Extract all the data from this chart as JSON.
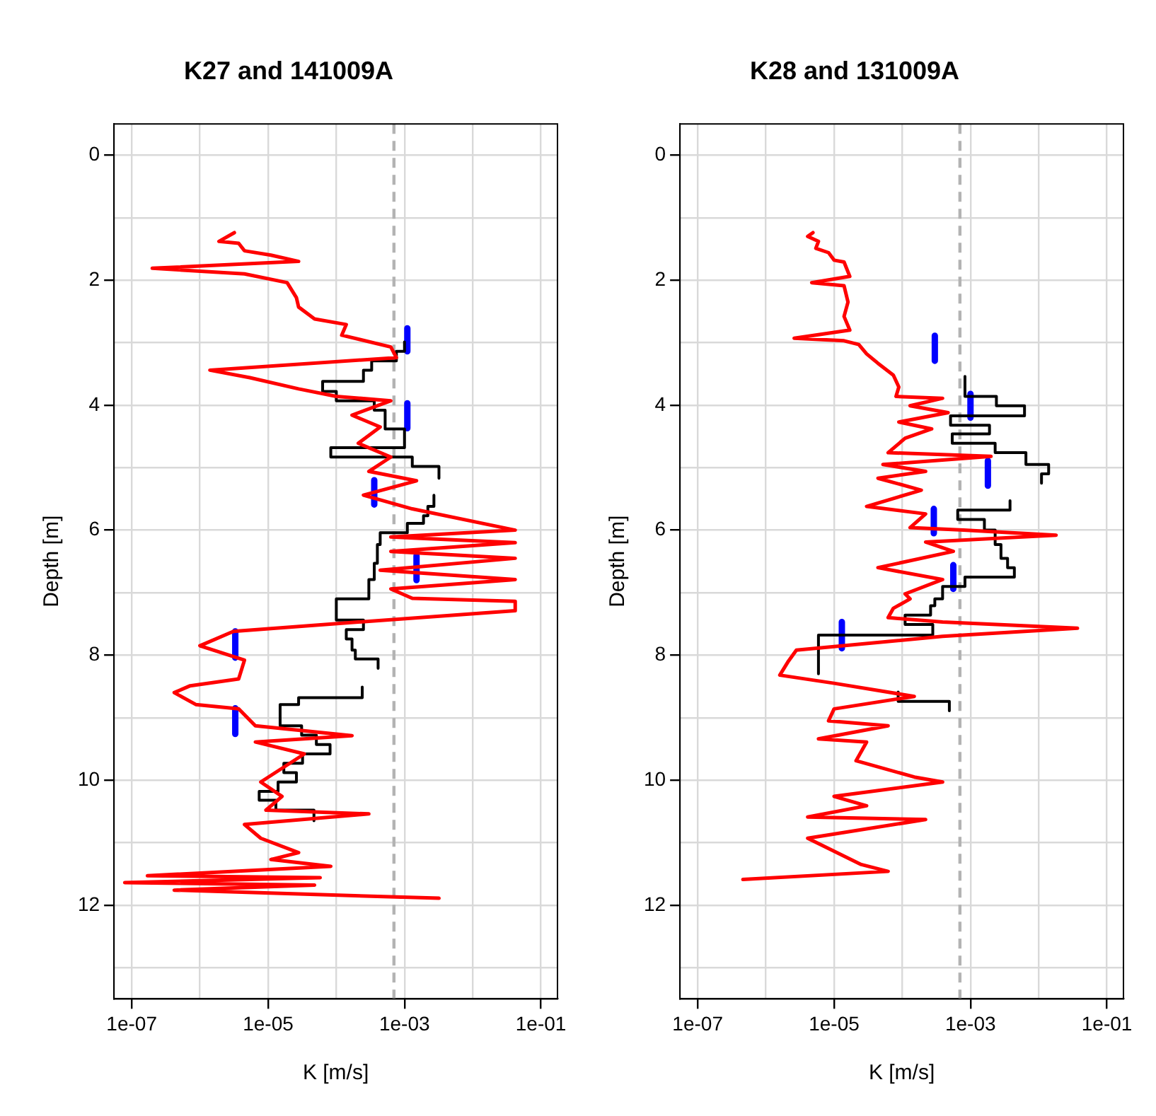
{
  "chart_data": [
    {
      "type": "line",
      "title": "K27 and 141009A",
      "xlabel": "K [m/s]",
      "ylabel": "Depth [m]",
      "log": "x",
      "grid": true,
      "marker": "none",
      "xlim": [
        5.5e-08,
        0.175
      ],
      "ylim": [
        13.5,
        -0.5
      ],
      "xticks": [
        {
          "value": 1e-07,
          "label": "1e-07"
        },
        {
          "value": 1e-06,
          "label": null
        },
        {
          "value": 1e-05,
          "label": "1e-05"
        },
        {
          "value": 0.0001,
          "label": null
        },
        {
          "value": 0.001,
          "label": "1e-03"
        },
        {
          "value": 0.01,
          "label": null
        },
        {
          "value": 0.1,
          "label": "1e-01"
        }
      ],
      "yticks": [
        0,
        {
          "value": 1,
          "label": null
        },
        2,
        {
          "value": 3,
          "label": null
        },
        4,
        {
          "value": 5,
          "label": null
        },
        6,
        {
          "value": 7,
          "label": null
        },
        8,
        {
          "value": 9,
          "label": null
        },
        10,
        {
          "value": 11,
          "label": null
        },
        12,
        {
          "value": 13,
          "label": null
        }
      ],
      "ref_lines": [
        {
          "axis": "x",
          "value": 0.0007,
          "color": "#b3b3b3",
          "line_style": "dashed"
        }
      ],
      "series": [
        {
          "color": "#ff0000",
          "x": [
            3.2e-06,
            1.9e-06,
            3.7e-06,
            4.5e-06,
            1.1e-05,
            2.8e-05,
            2e-07,
            4.5e-06,
            1.9e-05,
            2.6e-05,
            2.8e-05,
            4.8e-05,
            0.00014,
            0.00012,
            0.00063,
            0.00076,
            1.4e-06,
            5.4e-06,
            2.8e-05,
            0.0001,
            0.00063,
            0.00017,
            0.00044,
            0.00021,
            0.00063,
            0.0003,
            0.0015,
            0.00025,
            0.0013,
            0.042,
            0.00063,
            0.042,
            0.00063,
            0.042,
            0.00044,
            0.042,
            0.00063,
            0.0013,
            0.042,
            0.042,
            0.00021,
            3.1e-06,
            1e-06,
            4.5e-06,
            3.7e-06,
            7.2e-07,
            4.2e-07,
            8.7e-07,
            3.7e-06,
            6.5e-06,
            0.00017,
            6.5e-06,
            3.4e-05,
            7.8e-06,
            1.6e-05,
            9.3e-06,
            0.0003,
            4.5e-06,
            7.8e-06,
            2.8e-05,
            1.1e-05,
            8.3e-05,
            1.7e-07,
            5.8e-05,
            7.9e-08,
            4.8e-05,
            4.2e-07,
            0.0032
          ],
          "values": [
            1.24,
            1.38,
            1.41,
            1.53,
            1.6,
            1.7,
            1.81,
            1.9,
            2.04,
            2.28,
            2.43,
            2.62,
            2.71,
            2.88,
            3.07,
            3.24,
            3.44,
            3.56,
            3.74,
            3.86,
            3.93,
            4.16,
            4.35,
            4.61,
            4.83,
            5.06,
            5.21,
            5.44,
            5.66,
            6.0,
            6.11,
            6.2,
            6.34,
            6.45,
            6.64,
            6.79,
            6.94,
            7.09,
            7.14,
            7.29,
            7.47,
            7.62,
            7.85,
            8.08,
            8.38,
            8.49,
            8.6,
            8.79,
            8.86,
            9.13,
            9.29,
            9.39,
            9.58,
            10.03,
            10.26,
            10.48,
            10.54,
            10.71,
            10.93,
            11.16,
            11.27,
            11.38,
            11.53,
            11.56,
            11.64,
            11.68,
            11.76,
            11.89
          ]
        },
        {
          "color": "#000000",
          "x": [
            0.001,
            0.001,
            0.00076,
            0.00076,
            0.00033,
            0.00033,
            0.00025,
            0.00025,
            6.3e-05,
            6.3e-05,
            0.0001,
            0.0001,
            0.00036,
            0.00036,
            0.00052,
            0.00052,
            0.001,
            0.001,
            8.3e-05,
            8.3e-05,
            0.0013,
            0.0013,
            0.0032,
            0.0032,
            null,
            0.0027,
            0.0027,
            0.0022,
            0.0022,
            0.0019,
            0.0019,
            0.0011,
            0.0011,
            0.00044,
            0.00044,
            0.0004,
            0.0004,
            0.00036,
            0.00036,
            0.0003,
            0.0003,
            0.0001,
            0.0001,
            0.00025,
            0.00025,
            0.00014,
            0.00014,
            0.00017,
            0.00017,
            0.00019,
            0.00019,
            0.00041,
            0.00041,
            null,
            0.00024,
            0.00024,
            2.8e-05,
            2.8e-05,
            1.5e-05,
            1.5e-05,
            3.1e-05,
            3.1e-05,
            5.1e-05,
            5.1e-05,
            8.1e-05,
            8.1e-05,
            3.2e-05,
            3.2e-05,
            1.7e-05,
            1.7e-05,
            2.6e-05,
            2.6e-05,
            1.4e-05,
            1.4e-05,
            7.4e-06,
            7.4e-06,
            1.3e-05,
            1.3e-05,
            4.7e-05,
            4.7e-05
          ],
          "values": [
            2.99,
            3.14,
            3.14,
            3.29,
            3.29,
            3.44,
            3.44,
            3.62,
            3.62,
            3.78,
            3.78,
            3.93,
            3.93,
            4.08,
            4.08,
            4.38,
            4.38,
            4.68,
            4.68,
            4.83,
            4.83,
            4.98,
            4.98,
            5.17,
            null,
            5.44,
            5.62,
            5.62,
            5.77,
            5.77,
            5.89,
            5.89,
            6.04,
            6.04,
            6.23,
            6.23,
            6.53,
            6.53,
            6.79,
            6.79,
            7.1,
            7.1,
            7.44,
            7.44,
            7.59,
            7.59,
            7.74,
            7.74,
            7.92,
            7.92,
            8.06,
            8.06,
            8.21,
            null,
            8.51,
            8.68,
            8.68,
            8.79,
            8.79,
            9.13,
            9.13,
            9.28,
            9.28,
            9.43,
            9.43,
            9.58,
            9.58,
            9.73,
            9.73,
            9.88,
            9.88,
            10.03,
            10.03,
            10.18,
            10.18,
            10.32,
            10.32,
            10.48,
            10.48,
            10.65
          ]
        },
        {
          "color": "#0000ff",
          "x": [
            0.0011,
            0.0011,
            null,
            0.0011,
            0.0011,
            null,
            0.00036,
            0.00036,
            null,
            0.0015,
            0.0015,
            null,
            3.3e-06,
            3.3e-06,
            null,
            3.3e-06,
            3.3e-06
          ],
          "values": [
            2.77,
            3.14,
            null,
            3.97,
            4.37,
            null,
            5.2,
            5.59,
            null,
            6.41,
            6.8,
            null,
            7.62,
            8.04,
            null,
            8.85,
            9.26
          ]
        }
      ]
    },
    {
      "type": "line",
      "title": "K28 and 131009A",
      "xlabel": "K [m/s]",
      "ylabel": "Depth [m]",
      "log": "x",
      "grid": true,
      "marker": "none",
      "xlim": [
        5.5e-08,
        0.175
      ],
      "ylim": [
        13.5,
        -0.5
      ],
      "xticks": [
        {
          "value": 1e-07,
          "label": "1e-07"
        },
        {
          "value": 1e-06,
          "label": null
        },
        {
          "value": 1e-05,
          "label": "1e-05"
        },
        {
          "value": 0.0001,
          "label": null
        },
        {
          "value": 0.001,
          "label": "1e-03"
        },
        {
          "value": 0.01,
          "label": null
        },
        {
          "value": 0.1,
          "label": "1e-01"
        }
      ],
      "yticks": [
        0,
        {
          "value": 1,
          "label": null
        },
        2,
        {
          "value": 3,
          "label": null
        },
        4,
        {
          "value": 5,
          "label": null
        },
        6,
        {
          "value": 7,
          "label": null
        },
        8,
        {
          "value": 9,
          "label": null
        },
        10,
        {
          "value": 11,
          "label": null
        },
        12,
        {
          "value": 13,
          "label": null
        }
      ],
      "ref_lines": [
        {
          "axis": "x",
          "value": 0.0007,
          "color": "#b3b3b3",
          "line_style": "dashed"
        }
      ],
      "series": [
        {
          "color": "#ff0000",
          "x": [
            4.9e-06,
            4.1e-06,
            5.9e-06,
            5.4e-06,
            8.3e-06,
            1e-05,
            1.4e-05,
            1.7e-05,
            4.7e-06,
            1.4e-05,
            1.6e-05,
            1.4e-05,
            1.7e-05,
            2.6e-06,
            1.4e-05,
            2.3e-05,
            3e-05,
            4.4e-05,
            7.4e-05,
            8.9e-05,
            8.1e-05,
            0.00039,
            0.00013,
            0.00047,
            8.9e-05,
            0.00027,
            0.00011,
            6.2e-05,
            0.002,
            5.2e-05,
            0.00022,
            4.4e-05,
            0.00019,
            3e-05,
            0.00022,
            0.00013,
            0.00079,
            0.018,
            0.00022,
            0.00056,
            4.4e-05,
            0.00039,
            0.00011,
            0.00013,
            7.4e-05,
            6.2e-05,
            0.00039,
            0.037,
            0.00039,
            2.8e-06,
            2.1e-06,
            1.6e-06,
            1e-05,
            0.00015,
            4.4e-05,
            1e-05,
            8.3e-06,
            6.2e-05,
            5.9e-06,
            3e-05,
            2.1e-05,
            0.00015,
            0.00039,
            1e-05,
            3e-05,
            4.1e-06,
            0.00022,
            4.1e-06,
            2.5e-05,
            6.2e-05,
            4.6e-07
          ],
          "values": [
            1.24,
            1.3,
            1.38,
            1.49,
            1.56,
            1.68,
            1.71,
            1.94,
            2.04,
            2.09,
            2.35,
            2.58,
            2.8,
            2.93,
            2.97,
            3.03,
            3.18,
            3.33,
            3.52,
            3.71,
            3.86,
            3.89,
            4.01,
            4.12,
            4.27,
            4.38,
            4.53,
            4.76,
            4.82,
            4.95,
            5.06,
            5.17,
            5.36,
            5.62,
            5.74,
            5.96,
            6.0,
            6.08,
            6.19,
            6.34,
            6.6,
            6.79,
            7.02,
            7.1,
            7.25,
            7.4,
            7.47,
            7.57,
            7.7,
            7.92,
            8.11,
            8.32,
            8.45,
            8.66,
            8.75,
            8.86,
            9.05,
            9.13,
            9.34,
            9.39,
            9.69,
            9.95,
            10.03,
            10.26,
            10.41,
            10.59,
            10.63,
            10.93,
            11.35,
            11.46,
            11.59
          ]
        },
        {
          "color": "#000000",
          "x": [
            0.00083,
            0.00083,
            0.0024,
            0.0024,
            0.0062,
            0.0062,
            0.00051,
            0.00051,
            0.0019,
            0.0019,
            0.00054,
            0.00054,
            0.0023,
            0.0023,
            0.0065,
            0.0065,
            0.014,
            0.014,
            0.011,
            0.011,
            null,
            0.0038,
            0.0038,
            0.00065,
            0.00065,
            0.0016,
            0.0016,
            0.0023,
            0.0023,
            0.0028,
            0.0028,
            0.0035,
            0.0035,
            0.0044,
            0.0044,
            0.00083,
            0.00083,
            0.00039,
            0.00039,
            0.0003,
            0.0003,
            0.00026,
            0.00026,
            0.00011,
            0.00011,
            0.00028,
            0.00028,
            5.9e-06,
            5.9e-06,
            null,
            8.7e-05,
            8.7e-05,
            0.00049,
            0.00049
          ],
          "values": [
            3.54,
            3.86,
            3.86,
            4.01,
            4.01,
            4.17,
            4.17,
            4.32,
            4.32,
            4.46,
            4.46,
            4.61,
            4.61,
            4.76,
            4.76,
            4.95,
            4.95,
            5.1,
            5.1,
            5.25,
            null,
            5.53,
            5.68,
            5.68,
            5.83,
            5.83,
            6.0,
            6.0,
            6.23,
            6.23,
            6.45,
            6.45,
            6.6,
            6.6,
            6.75,
            6.75,
            6.9,
            6.9,
            7.1,
            7.1,
            7.21,
            7.21,
            7.36,
            7.36,
            7.51,
            7.51,
            7.68,
            7.68,
            8.3,
            null,
            8.59,
            8.74,
            8.74,
            8.89
          ]
        },
        {
          "color": "#0000ff",
          "x": [
            0.0003,
            0.0003,
            null,
            0.001,
            0.001,
            null,
            0.0018,
            0.0018,
            null,
            0.00029,
            0.00029,
            null,
            0.00056,
            0.00056,
            null,
            1.3e-05,
            1.3e-05
          ],
          "values": [
            2.89,
            3.29,
            null,
            3.82,
            4.2,
            null,
            4.89,
            5.29,
            null,
            5.66,
            6.05,
            null,
            6.56,
            6.94,
            null,
            7.47,
            7.89
          ]
        }
      ]
    }
  ]
}
